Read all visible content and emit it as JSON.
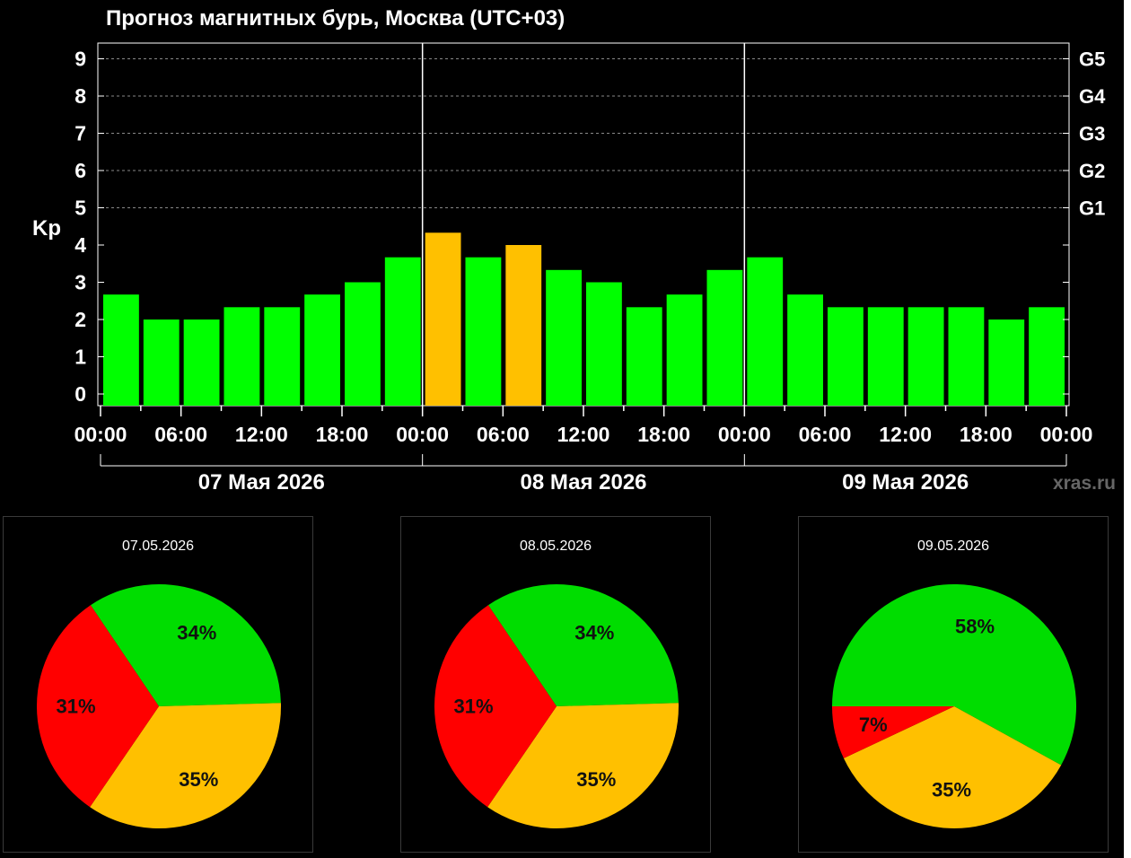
{
  "chart_data": [
    {
      "type": "bar",
      "title": "Прогноз магнитных бурь, Москва (UTC+03)",
      "ylabel": "Kp",
      "ylim": [
        0,
        9
      ],
      "yticks": [
        "0",
        "1",
        "2",
        "3",
        "4",
        "5",
        "6",
        "7",
        "8",
        "9"
      ],
      "g_levels": [
        {
          "label": "G1",
          "kp": 5
        },
        {
          "label": "G2",
          "kp": 6
        },
        {
          "label": "G3",
          "kp": 7
        },
        {
          "label": "G4",
          "kp": 8
        },
        {
          "label": "G5",
          "kp": 9
        }
      ],
      "xticks": [
        "00:00",
        "06:00",
        "12:00",
        "18:00",
        "00:00",
        "06:00",
        "12:00",
        "18:00",
        "00:00",
        "06:00",
        "12:00",
        "18:00",
        "00:00"
      ],
      "days": [
        "07 Мая 2026",
        "08 Мая 2026",
        "09 Мая 2026"
      ],
      "values": [
        2.67,
        2.0,
        2.0,
        2.33,
        2.33,
        2.67,
        3.0,
        3.67,
        4.33,
        3.67,
        4.0,
        3.33,
        3.0,
        2.33,
        2.67,
        3.33,
        3.67,
        2.67,
        2.33,
        2.33,
        2.33,
        2.33,
        2.0,
        2.33
      ],
      "colors": {
        "quiet": "#00ff00",
        "unsettled": "#ffc000"
      },
      "grid": true,
      "watermark": "xras.ru"
    },
    {
      "type": "pie",
      "title": "07.05.2026",
      "slices": [
        {
          "value": 34,
          "label": "34%",
          "color": "#00dd00"
        },
        {
          "value": 35,
          "label": "35%",
          "color": "#ffc000"
        },
        {
          "value": 31,
          "label": "31%",
          "color": "#ff0000"
        }
      ]
    },
    {
      "type": "pie",
      "title": "08.05.2026",
      "slices": [
        {
          "value": 34,
          "label": "34%",
          "color": "#00dd00"
        },
        {
          "value": 35,
          "label": "35%",
          "color": "#ffc000"
        },
        {
          "value": 31,
          "label": "31%",
          "color": "#ff0000"
        }
      ]
    },
    {
      "type": "pie",
      "title": "09.05.2026",
      "slices": [
        {
          "value": 58,
          "label": "58%",
          "color": "#00dd00"
        },
        {
          "value": 35,
          "label": "35%",
          "color": "#ffc000"
        },
        {
          "value": 7,
          "label": "7%",
          "color": "#ff0000"
        }
      ]
    }
  ]
}
